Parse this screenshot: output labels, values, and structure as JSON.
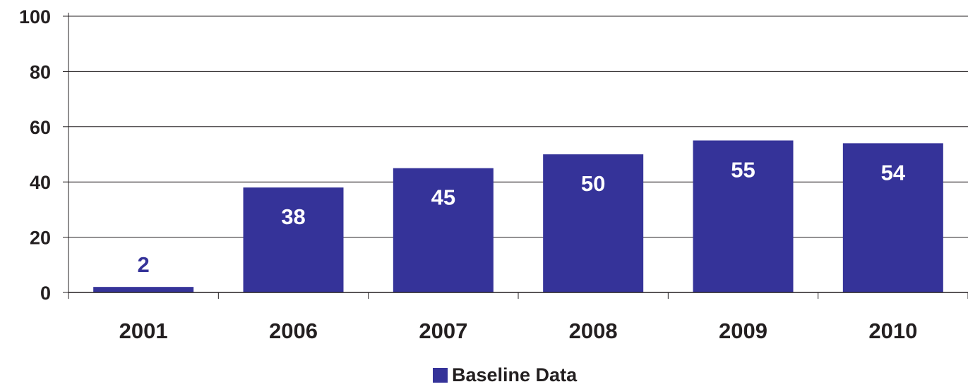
{
  "chart_data": {
    "type": "bar",
    "categories": [
      "2001",
      "2006",
      "2007",
      "2008",
      "2009",
      "2010"
    ],
    "series": [
      {
        "name": "Baseline Data",
        "values": [
          2,
          38,
          45,
          50,
          55,
          54
        ],
        "data_labels": [
          "2",
          "38",
          "45",
          "50",
          "55",
          "54"
        ]
      }
    ],
    "title": "",
    "xlabel": "",
    "ylabel": "",
    "ylim": [
      0,
      100
    ],
    "yticks": [
      "0",
      "20",
      "40",
      "60",
      "80",
      "100"
    ],
    "grid": true,
    "legend": "bottom-center",
    "colors": {
      "bar": "#353399",
      "label_inside": "#ffffff",
      "label_outside": "#353399",
      "text": "#231f20",
      "axis": "#231f20"
    }
  }
}
